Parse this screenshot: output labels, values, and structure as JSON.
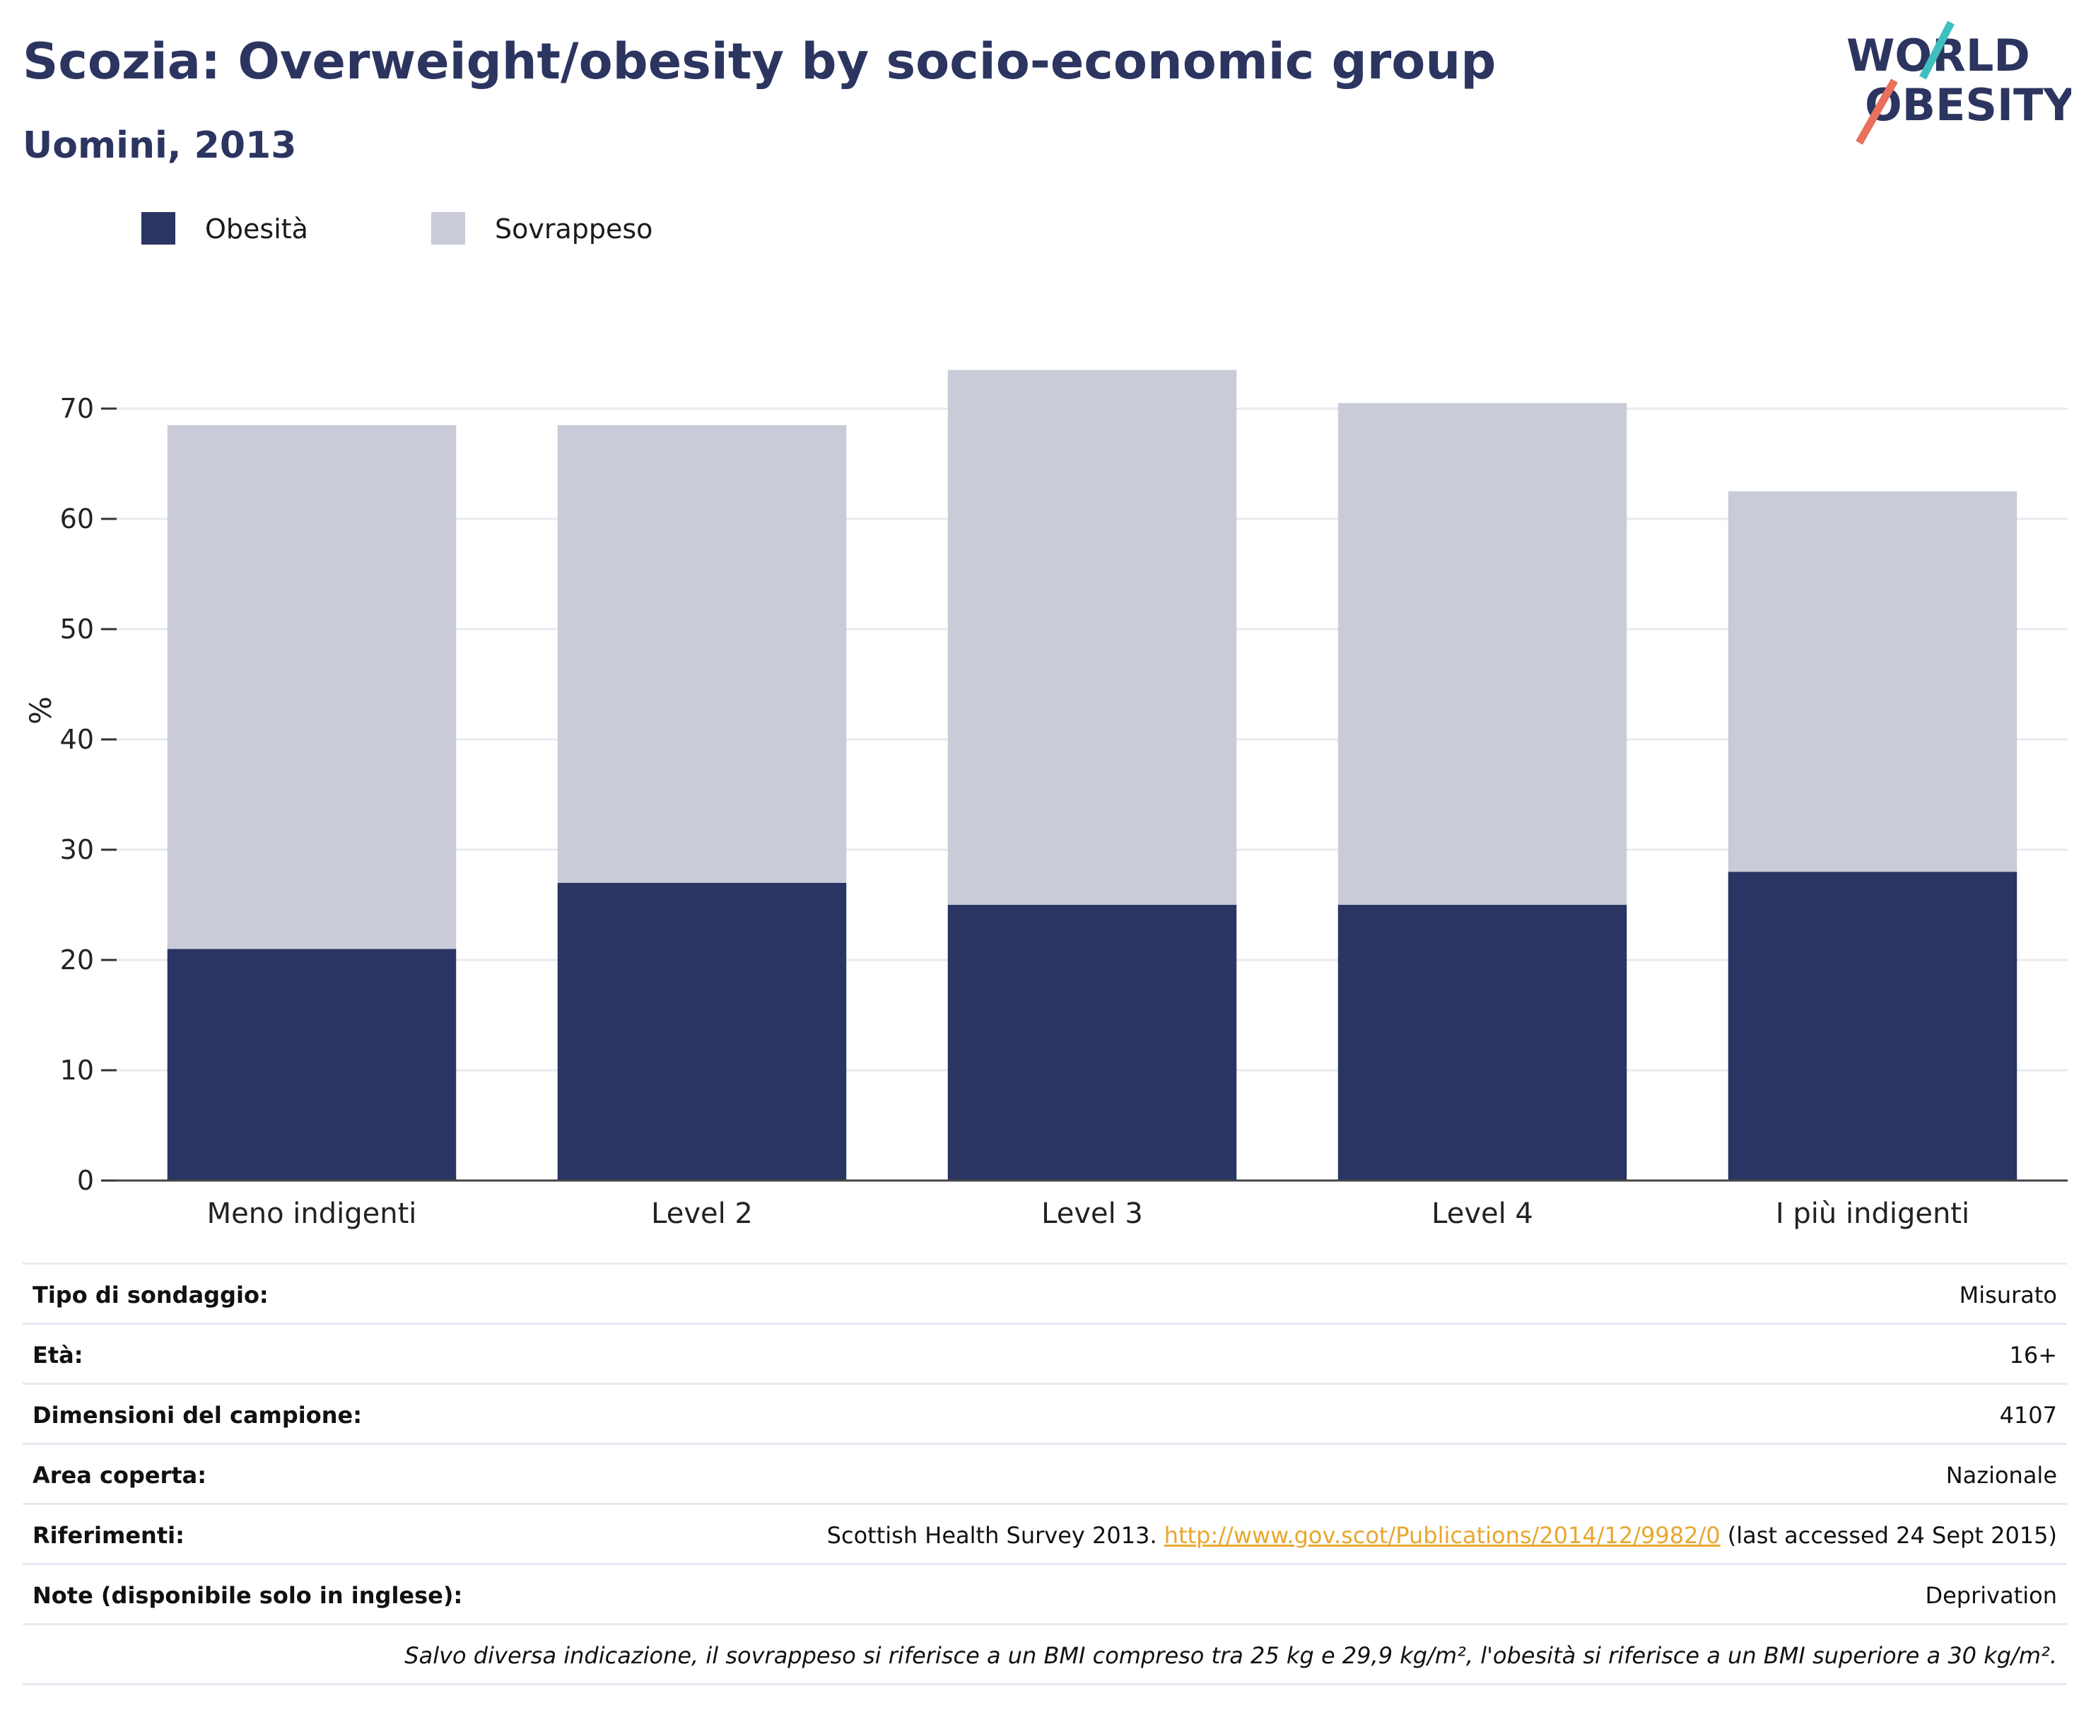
{
  "header": {
    "title": "Scozia: Overweight/obesity by socio-economic group",
    "subtitle": "Uomini, 2013"
  },
  "logo": {
    "line1": "WORLD",
    "line2": "OBESITY"
  },
  "colors": {
    "obesity": "#2a3563",
    "overweight": "#c9ccd8",
    "title": "#2c3560",
    "link": "#e8a72e"
  },
  "chart_data": {
    "type": "bar",
    "stacked": true,
    "categories": [
      "Meno indigenti",
      "Level 2",
      "Level 3",
      "Level 4",
      "I più indigenti"
    ],
    "series": [
      {
        "name": "Obesità",
        "values": [
          21,
          27,
          25,
          25,
          28
        ]
      },
      {
        "name": "Sovrappeso",
        "values": [
          47.5,
          41.5,
          48.5,
          45.5,
          34.5
        ]
      }
    ],
    "ylabel": "%",
    "xlabel": "",
    "ylim": [
      0,
      75
    ],
    "yticks": [
      0,
      10,
      20,
      30,
      40,
      50,
      60,
      70
    ],
    "grid": true,
    "legend": "top-left"
  },
  "info": {
    "rows": [
      {
        "label": "Tipo di sondaggio:",
        "value": "Misurato"
      },
      {
        "label": "Età:",
        "value": "16+"
      },
      {
        "label": "Dimensioni del campione:",
        "value": "4107"
      },
      {
        "label": "Area coperta:",
        "value": "Nazionale"
      },
      {
        "label": "Riferimenti:",
        "value_pre": "Scottish Health Survey 2013. ",
        "link": "http://www.gov.scot/Publications/2014/12/9982/0",
        "value_post": " (last accessed 24 Sept 2015)"
      },
      {
        "label": "Note (disponibile solo in inglese):",
        "value": "Deprivation"
      }
    ],
    "note": "Salvo diversa indicazione, il sovrappeso si riferisce a un BMI compreso tra 25 kg e 29,9 kg/m², l'obesità si riferisce a un BMI superiore a 30 kg/m²."
  }
}
